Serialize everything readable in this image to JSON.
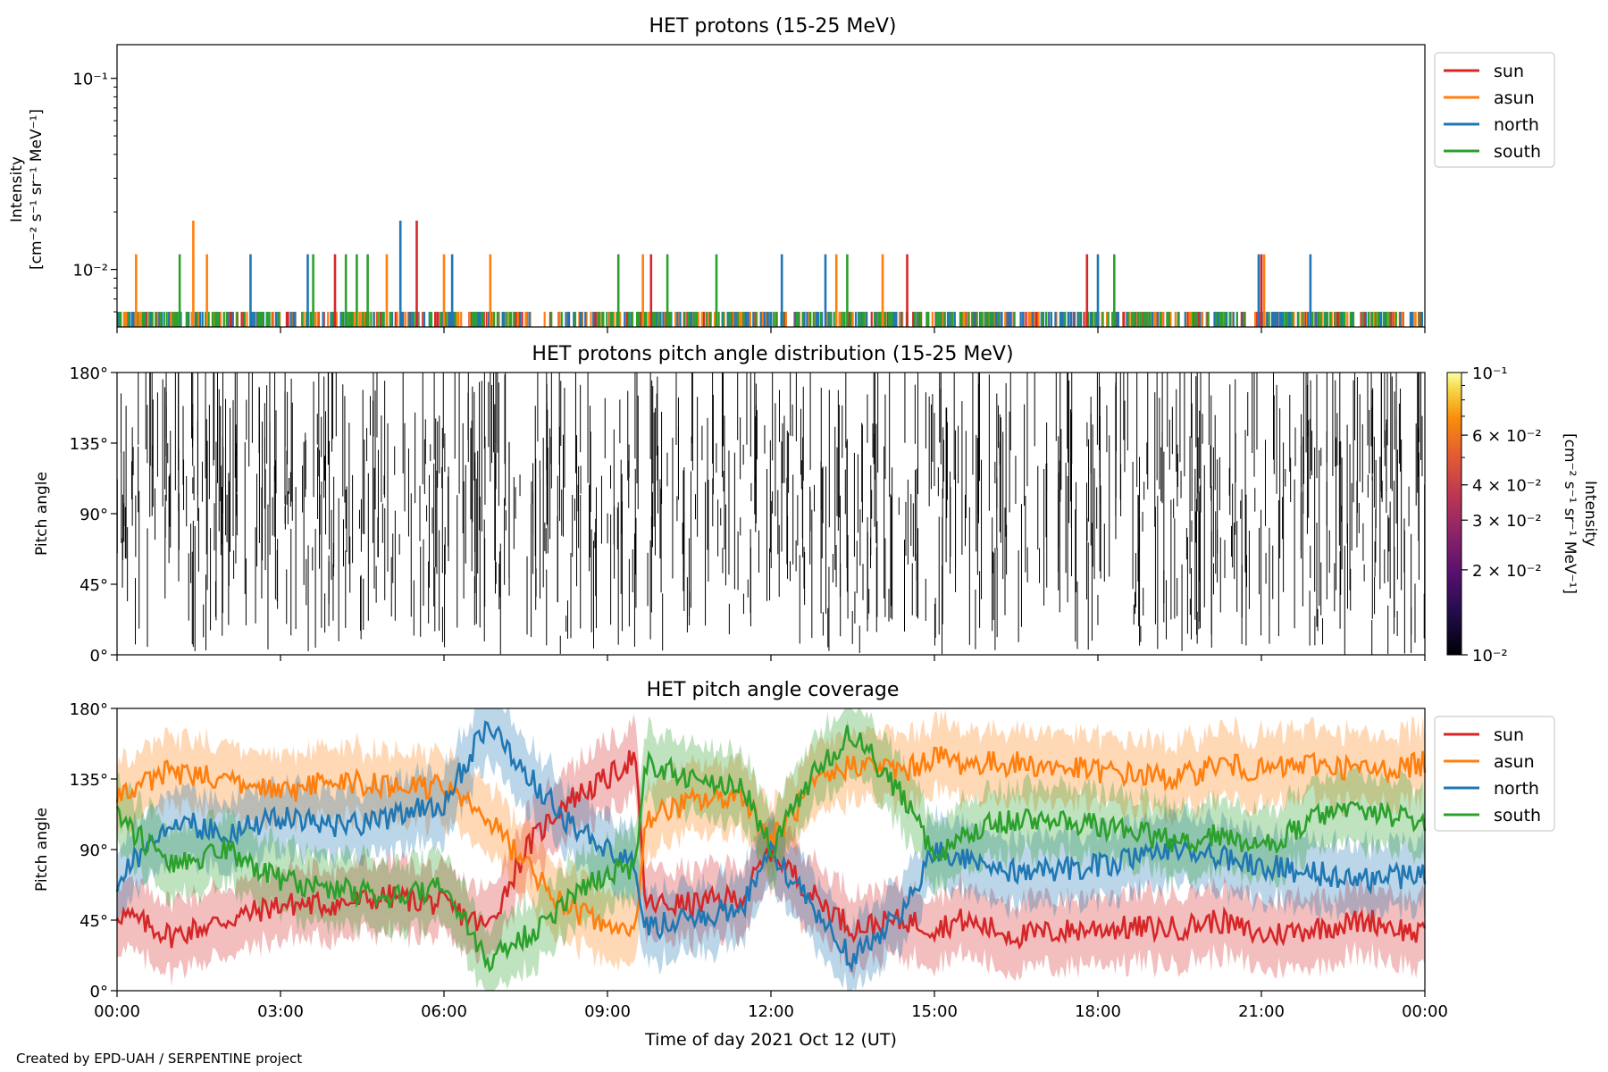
{
  "chart_data": [
    {
      "type": "line",
      "title": "HET protons (15-25 MeV)",
      "ylabel_line1": "Intensity",
      "ylabel_line2": "[cm⁻² s⁻¹ sr⁻¹ MeV⁻¹]",
      "yscale": "log",
      "ylim": [
        0.005,
        0.15
      ],
      "yticks": [
        {
          "value": 0.01,
          "label": "10⁻²"
        },
        {
          "value": 0.1,
          "label": "10⁻¹"
        }
      ],
      "xlim": [
        0,
        24
      ],
      "legend_placement": "outside-right",
      "baseline_value": 0.006,
      "series": [
        {
          "name": "sun",
          "color": "#d62728",
          "spike_hours": [
            4.0,
            5.5,
            9.8,
            14.5,
            17.8,
            21.0
          ],
          "spike_values": [
            0.012,
            0.018,
            0.012,
            0.012,
            0.012,
            0.012
          ]
        },
        {
          "name": "asun",
          "color": "#ff7f0e",
          "spike_hours": [
            0.35,
            1.4,
            1.65,
            4.95,
            6.0,
            6.85,
            9.65,
            13.2,
            14.05,
            21.05
          ],
          "spike_values": [
            0.012,
            0.018,
            0.012,
            0.012,
            0.012,
            0.012,
            0.012,
            0.012,
            0.012,
            0.012
          ]
        },
        {
          "name": "north",
          "color": "#1f77b4",
          "spike_hours": [
            2.45,
            3.5,
            5.2,
            6.15,
            12.2,
            13.0,
            18.0,
            20.95,
            21.9
          ],
          "spike_values": [
            0.012,
            0.012,
            0.018,
            0.012,
            0.012,
            0.012,
            0.012,
            0.012,
            0.012
          ]
        },
        {
          "name": "south",
          "color": "#2ca02c",
          "spike_hours": [
            1.15,
            3.6,
            4.2,
            4.4,
            4.6,
            9.2,
            10.1,
            11.0,
            13.4,
            18.3
          ],
          "spike_values": [
            0.012,
            0.012,
            0.012,
            0.012,
            0.012,
            0.012,
            0.012,
            0.012,
            0.012,
            0.012
          ]
        }
      ]
    },
    {
      "type": "heatmap",
      "title": "HET protons pitch angle distribution (15-25 MeV)",
      "ylabel": "Pitch angle",
      "ylim": [
        0,
        180
      ],
      "yticks": [
        {
          "value": 0,
          "label": "0°"
        },
        {
          "value": 45,
          "label": "45°"
        },
        {
          "value": 90,
          "label": "90°"
        },
        {
          "value": 135,
          "label": "135°"
        },
        {
          "value": 180,
          "label": "180°"
        }
      ],
      "xlim": [
        0,
        24
      ],
      "colorbar": {
        "label_line1": "Intensity",
        "label_line2": "[cm⁻² s⁻¹ sr⁻¹ MeV⁻¹]",
        "scale": "log",
        "range": [
          0.01,
          0.1
        ],
        "colormap": "inferno",
        "ticks": [
          {
            "value": 0.01,
            "label": "10⁻²"
          },
          {
            "value": 0.02,
            "label": "2 × 10⁻²"
          },
          {
            "value": 0.03,
            "label": "3 × 10⁻²"
          },
          {
            "value": 0.04,
            "label": "4 × 10⁻²"
          },
          {
            "value": 0.06,
            "label": "6 × 10⁻²"
          },
          {
            "value": 0.1,
            "label": "10⁻¹"
          }
        ]
      },
      "note": "sparse thin near-black vertical streaks across the full time range"
    },
    {
      "type": "line",
      "title": "HET pitch angle coverage",
      "ylabel": "Pitch angle",
      "ylim": [
        0,
        180
      ],
      "yticks": [
        {
          "value": 0,
          "label": "0°"
        },
        {
          "value": 45,
          "label": "45°"
        },
        {
          "value": 90,
          "label": "90°"
        },
        {
          "value": 135,
          "label": "135°"
        },
        {
          "value": 180,
          "label": "180°"
        }
      ],
      "xlim": [
        0,
        24
      ],
      "xlabel": "Time of day 2021 Oct 12 (UT)",
      "xticks": [
        {
          "value": 0,
          "label": "00:00"
        },
        {
          "value": 3,
          "label": "03:00"
        },
        {
          "value": 6,
          "label": "06:00"
        },
        {
          "value": 9,
          "label": "09:00"
        },
        {
          "value": 12,
          "label": "12:00"
        },
        {
          "value": 15,
          "label": "15:00"
        },
        {
          "value": 18,
          "label": "18:00"
        },
        {
          "value": 21,
          "label": "21:00"
        },
        {
          "value": 24,
          "label": "00:00"
        }
      ],
      "legend_placement": "outside-right",
      "band_halfwidth_deg": 22,
      "series": [
        {
          "name": "sun",
          "color": "#d62728",
          "x": [
            0,
            1,
            2,
            3,
            4,
            5,
            6,
            6.8,
            7.5,
            8.2,
            9.0,
            9.5,
            9.7,
            10.5,
            11.5,
            12.0,
            12.8,
            13.5,
            14.5,
            15.0,
            15.5,
            16.5,
            18.0,
            19.5,
            20.2,
            21.0,
            22.0,
            23.0,
            24.0
          ],
          "y": [
            50,
            35,
            45,
            55,
            55,
            60,
            55,
            40,
            90,
            120,
            135,
            150,
            55,
            55,
            60,
            90,
            60,
            40,
            45,
            40,
            45,
            35,
            40,
            40,
            45,
            35,
            40,
            45,
            35
          ]
        },
        {
          "name": "asun",
          "color": "#ff7f0e",
          "x": [
            0,
            1,
            2,
            3,
            4,
            5,
            6,
            6.8,
            7.5,
            8.2,
            9.0,
            9.5,
            9.7,
            10.5,
            11.5,
            12.0,
            12.8,
            13.5,
            14.5,
            15.0,
            15.5,
            16.5,
            18.0,
            19.5,
            20.2,
            21.0,
            22.0,
            23.0,
            24.0
          ],
          "y": [
            125,
            140,
            135,
            125,
            135,
            130,
            130,
            110,
            80,
            55,
            40,
            35,
            110,
            120,
            125,
            95,
            130,
            145,
            140,
            150,
            145,
            145,
            140,
            135,
            145,
            140,
            145,
            140,
            145
          ]
        },
        {
          "name": "north",
          "color": "#1f77b4",
          "x": [
            0,
            1,
            2,
            3,
            4,
            5,
            6,
            6.8,
            7.5,
            8.2,
            9.0,
            9.5,
            9.7,
            10.5,
            11.5,
            12.0,
            12.8,
            13.5,
            14.5,
            15.0,
            15.5,
            16.5,
            18.0,
            19.5,
            20.2,
            21.0,
            22.0,
            23.0,
            24.0
          ],
          "y": [
            70,
            110,
            100,
            110,
            105,
            110,
            120,
            170,
            140,
            110,
            90,
            80,
            40,
            45,
            55,
            90,
            50,
            20,
            55,
            90,
            85,
            75,
            80,
            90,
            85,
            80,
            75,
            70,
            75
          ]
        },
        {
          "name": "south",
          "color": "#2ca02c",
          "x": [
            0,
            1,
            2,
            3,
            4,
            5,
            6,
            6.8,
            7.5,
            8.2,
            9.0,
            9.5,
            9.7,
            10.5,
            11.5,
            12.0,
            12.8,
            13.5,
            14.5,
            15.0,
            15.5,
            16.5,
            18.0,
            19.5,
            20.2,
            21.0,
            22.0,
            23.0,
            24.0
          ],
          "y": [
            110,
            80,
            90,
            70,
            65,
            60,
            65,
            20,
            35,
            55,
            75,
            80,
            145,
            135,
            130,
            90,
            140,
            165,
            120,
            85,
            100,
            110,
            105,
            95,
            100,
            90,
            110,
            115,
            105
          ]
        }
      ]
    }
  ],
  "footer": "Created by EPD-UAH / SERPENTINE project"
}
